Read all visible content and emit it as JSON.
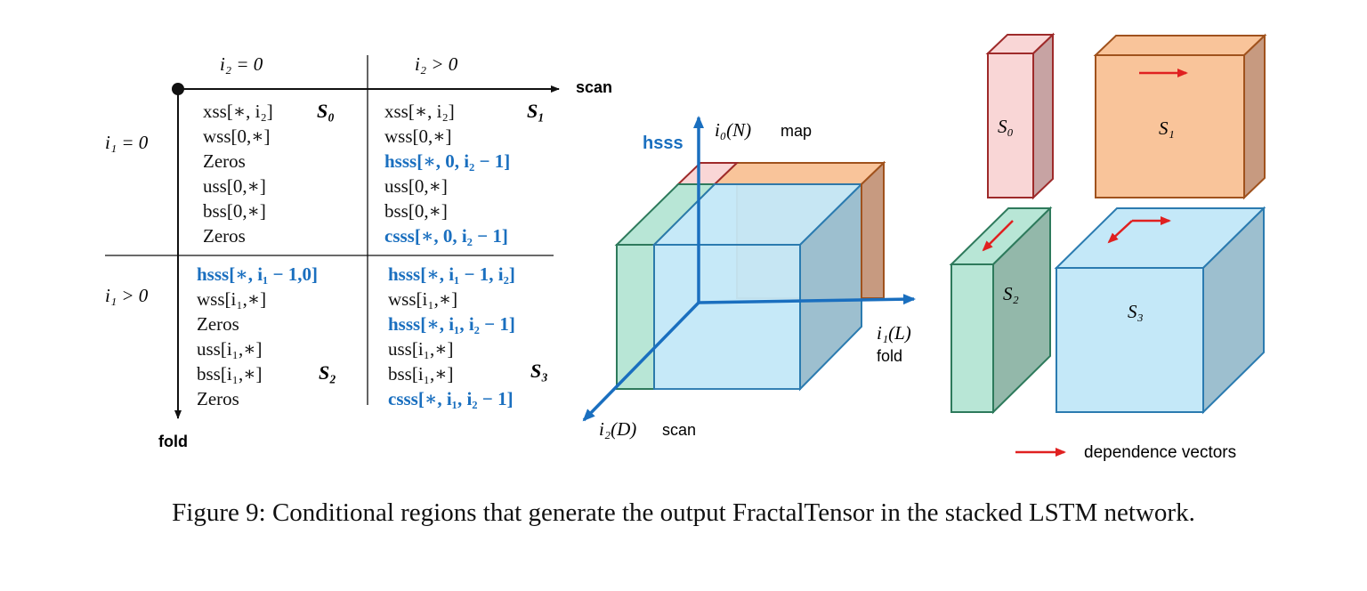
{
  "table": {
    "col_headers": [
      "i₂ = 0",
      "i₂ > 0"
    ],
    "row_headers": [
      "i₁ = 0",
      "i₁ > 0"
    ],
    "axis_scan": "scan",
    "axis_fold": "fold",
    "cells": {
      "S0": {
        "label": "S₀",
        "lines": [
          {
            "t": "xss[∗, i₂]",
            "hl": false
          },
          {
            "t": "wss[0,∗]",
            "hl": false
          },
          {
            "t": "Zeros",
            "hl": false
          },
          {
            "t": "uss[0,∗]",
            "hl": false
          },
          {
            "t": "bss[0,∗]",
            "hl": false
          },
          {
            "t": "Zeros",
            "hl": false
          }
        ]
      },
      "S1": {
        "label": "S₁",
        "lines": [
          {
            "t": "xss[∗, i₂]",
            "hl": false
          },
          {
            "t": "wss[0,∗]",
            "hl": false
          },
          {
            "t": "hsss[∗, 0, i₂ − 1]",
            "hl": true
          },
          {
            "t": "uss[0,∗]",
            "hl": false
          },
          {
            "t": "bss[0,∗]",
            "hl": false
          },
          {
            "t": "csss[∗, 0, i₂ − 1]",
            "hl": true
          }
        ]
      },
      "S2": {
        "label": "S₂",
        "lines": [
          {
            "t": "hsss[∗, i₁ − 1,0]",
            "hl": true
          },
          {
            "t": "wss[i₁,∗]",
            "hl": false
          },
          {
            "t": "Zeros",
            "hl": false
          },
          {
            "t": "uss[i₁,∗]",
            "hl": false
          },
          {
            "t": "bss[i₁,∗]",
            "hl": false
          },
          {
            "t": "Zeros",
            "hl": false
          }
        ]
      },
      "S3": {
        "label": "S₃",
        "lines": [
          {
            "t": "hsss[∗, i₁ − 1, i₂]",
            "hl": true
          },
          {
            "t": "wss[i₁,∗]",
            "hl": false
          },
          {
            "t": "hsss[∗, i₁, i₂ − 1]",
            "hl": true
          },
          {
            "t": "uss[i₁,∗]",
            "hl": false
          },
          {
            "t": "bss[i₁,∗]",
            "hl": false
          },
          {
            "t": "csss[∗, i₁, i₂ − 1]",
            "hl": true
          }
        ]
      }
    }
  },
  "cube": {
    "vertical_axis_var": "i₀(N)",
    "vertical_axis_name": "map",
    "vertical_axis_tensor": "hsss",
    "depth_axis_var": "i₁(L)",
    "depth_axis_name": "fold",
    "horizontal_axis_var": "i₂(D)",
    "horizontal_axis_name": "scan"
  },
  "regions": {
    "S0": "S₀",
    "S1": "S₁",
    "S2": "S₂",
    "S3": "S₃",
    "legend": "dependence vectors"
  },
  "colors": {
    "s0_fill": "#f9d6d6",
    "s0_stroke": "#9e2a2a",
    "s1_fill": "#f9c49a",
    "s1_stroke": "#a0521d",
    "s2_fill": "#b8e6d6",
    "s2_stroke": "#2e7a5c",
    "s3_fill": "#c4e8f8",
    "s3_stroke": "#2b7bb0",
    "axis_blue": "#1a6fbf",
    "arrow_red": "#e02020"
  },
  "caption": "Figure 9: Conditional regions that generate the output FractalTensor in the stacked LSTM network."
}
